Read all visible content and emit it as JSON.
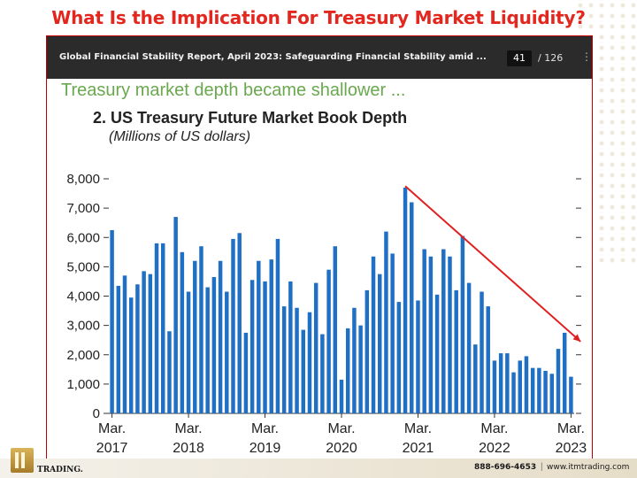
{
  "slide": {
    "title": "What Is the Implication For Treasury Market Liquidity?"
  },
  "viewer": {
    "document_title": "Global Financial Stability Report, April 2023: Safeguarding Financial Stability amid ...",
    "page_current": "41",
    "page_total": "/ 126"
  },
  "figure": {
    "subtitle": "Treasury market depth became shallower ...",
    "title": "2. US Treasury Future Market Book Depth",
    "unit": "(Millions of US dollars)"
  },
  "chart_data": {
    "type": "bar",
    "bar_color": "#1f6fc4",
    "trend_line_color": "#e02020",
    "ylim": [
      0,
      8000
    ],
    "yticks": [
      "0",
      "1,000",
      "2,000",
      "3,000",
      "4,000",
      "5,000",
      "6,000",
      "7,000",
      "8,000"
    ],
    "ytick_values": [
      0,
      1000,
      2000,
      3000,
      4000,
      5000,
      6000,
      7000,
      8000
    ],
    "xticks": [
      {
        "label1": "Mar.",
        "label2": "2017",
        "index": 0
      },
      {
        "label1": "Mar.",
        "label2": "2018",
        "index": 12
      },
      {
        "label1": "Mar.",
        "label2": "2019",
        "index": 24
      },
      {
        "label1": "Mar.",
        "label2": "2020",
        "index": 36
      },
      {
        "label1": "Mar.",
        "label2": "2021",
        "index": 48
      },
      {
        "label1": "Mar.",
        "label2": "2022",
        "index": 60
      },
      {
        "label1": "Mar.",
        "label2": "2023",
        "index": 72
      }
    ],
    "values": [
      6250,
      4350,
      4700,
      3950,
      4400,
      4850,
      4750,
      5800,
      5800,
      2800,
      6700,
      5500,
      4150,
      5200,
      5700,
      4300,
      4650,
      5200,
      4150,
      5950,
      6150,
      2750,
      4550,
      5200,
      4500,
      5250,
      5950,
      3650,
      4500,
      3600,
      2850,
      3450,
      4450,
      2700,
      4900,
      5700,
      1150,
      2900,
      3600,
      3000,
      4200,
      5350,
      4750,
      6200,
      5450,
      3800,
      7700,
      7200,
      3850,
      5600,
      5350,
      4050,
      5600,
      5350,
      4200,
      6050,
      4450,
      2350,
      4150,
      3650,
      1800,
      2050,
      2050,
      1400,
      1800,
      1950,
      1550,
      1550,
      1450,
      1350,
      2200,
      2750,
      1250
    ],
    "trend_line": {
      "x_start_index": 46,
      "y_start": 7750,
      "x_end_index": 73.5,
      "y_end": 2450
    }
  },
  "footer": {
    "logo_text": "TRADING.",
    "phone": "888-696-4653",
    "separator": "|",
    "website": "www.itmtrading.com"
  }
}
